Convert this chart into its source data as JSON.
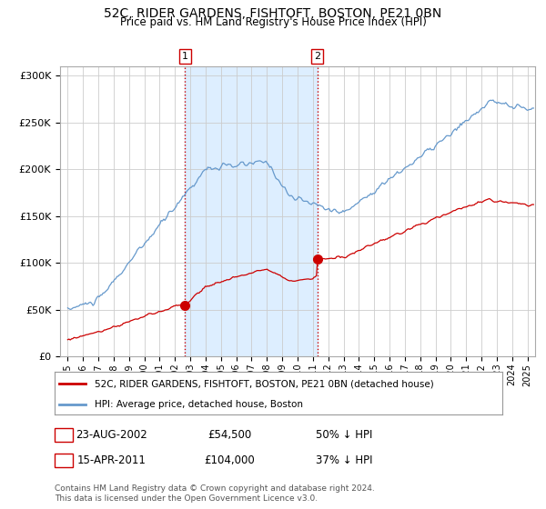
{
  "title": "52C, RIDER GARDENS, FISHTOFT, BOSTON, PE21 0BN",
  "subtitle": "Price paid vs. HM Land Registry's House Price Index (HPI)",
  "hpi_label": "HPI: Average price, detached house, Boston",
  "property_label": "52C, RIDER GARDENS, FISHTOFT, BOSTON, PE21 0BN (detached house)",
  "purchase1_date": "23-AUG-2002",
  "purchase1_price": 54500,
  "purchase1_pct": "50% ↓ HPI",
  "purchase2_date": "15-APR-2011",
  "purchase2_price": 104000,
  "purchase2_pct": "37% ↓ HPI",
  "footnote": "Contains HM Land Registry data © Crown copyright and database right 2024.\nThis data is licensed under the Open Government Licence v3.0.",
  "hpi_color": "#6699cc",
  "property_color": "#cc0000",
  "shaded_color": "#ddeeff",
  "marker1_x_year": 2002.65,
  "marker2_x_year": 2011.29,
  "vline_color": "#cc0000",
  "background_color": "#ffffff",
  "ylim": [
    0,
    310000
  ],
  "xlim_start": 1994.5,
  "xlim_end": 2025.5
}
